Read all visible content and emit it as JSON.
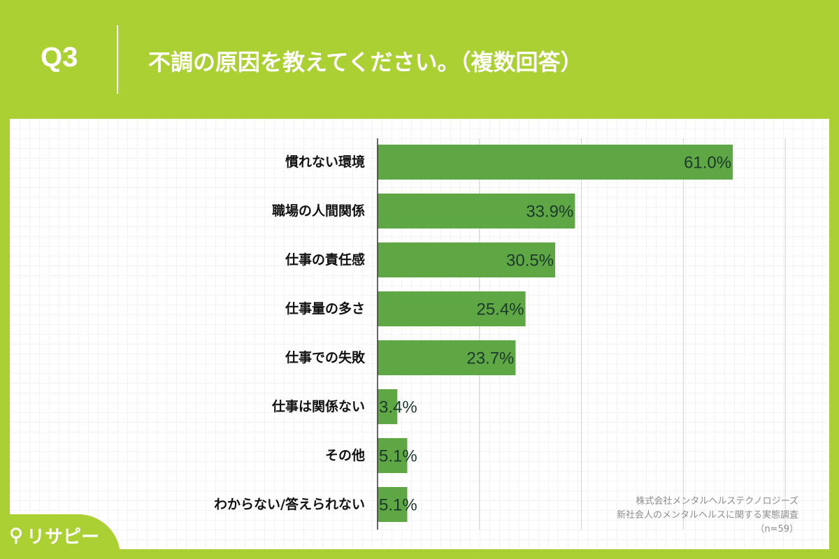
{
  "header": {
    "question_number": "Q3",
    "title": "不調の原因を教えてください。（複数回答）"
  },
  "chart_data": {
    "type": "bar",
    "orientation": "horizontal",
    "categories": [
      "慣れない環境",
      "職場の人間関係",
      "仕事の責任感",
      "仕事量の多さ",
      "仕事での失敗",
      "仕事は関係ない",
      "その他",
      "わからない/答えられない"
    ],
    "values": [
      61.0,
      33.9,
      30.5,
      25.4,
      23.7,
      3.4,
      5.1,
      5.1
    ],
    "value_labels": [
      "61.0%",
      "33.9%",
      "30.5%",
      "25.4%",
      "23.7%",
      "3.4%",
      "5.1%",
      "5.1%"
    ],
    "xlim": [
      0,
      70
    ],
    "grid": true,
    "bar_color": "#5fa645",
    "label_color": "#1a3a2a"
  },
  "source": {
    "line1": "株式会社メンタルヘルステクノロジーズ",
    "line2": "新社会人のメンタルヘルスに関する実態調査",
    "line3": "（n=59）"
  },
  "logo": {
    "text": "リサピー",
    "icon": "location-pin-icon"
  },
  "colors": {
    "background": "#aad033",
    "panel": "#ffffff",
    "bar": "#5fa645"
  }
}
